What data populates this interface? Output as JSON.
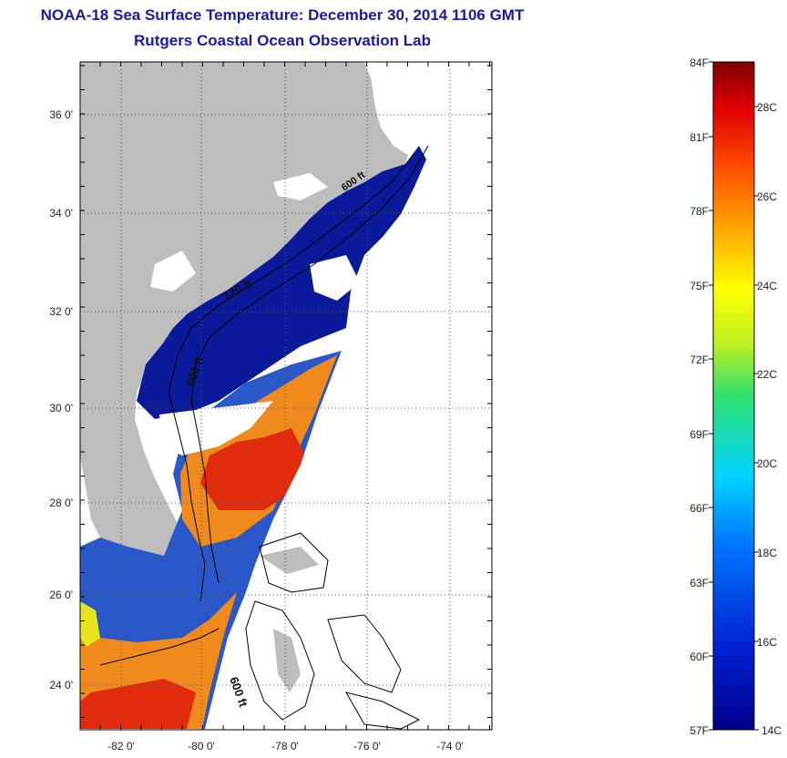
{
  "title": {
    "line1": "NOAA-18 Sea Surface Temperature:  December 30, 2014 1106 GMT",
    "line2": "Rutgers Coastal Ocean Observation Lab"
  },
  "map": {
    "lat_labels": [
      "36 0'",
      "34 0'",
      "32 0'",
      "30 0'",
      "28 0'",
      "26 0'",
      "24 0'"
    ],
    "lon_labels": [
      "-82 0'",
      "-80 0'",
      "-78 0'",
      "-76 0'",
      "-74 0'"
    ],
    "contour_labels": [
      "120 ft",
      "600 ft",
      "600 ft",
      "600 ft"
    ],
    "colors": {
      "land": "#bdbdbd",
      "cold": "#0a1a9a",
      "mid_blue": "#1f4fd0",
      "warm_orange": "#f08a1c",
      "hot_red": "#e02c0c",
      "cloud": "#ffffff",
      "grid": "#555555"
    }
  },
  "colorbar": {
    "fahrenheit_labels": [
      "84F",
      "81F",
      "78F",
      "75F",
      "72F",
      "69F",
      "66F",
      "63F",
      "60F",
      "57F"
    ],
    "celsius_labels": [
      "28C",
      "26C",
      "24C",
      "22C",
      "20C",
      "18C",
      "16C",
      "14C"
    ],
    "range_f": [
      57,
      84
    ],
    "range_c": [
      14,
      29
    ]
  }
}
